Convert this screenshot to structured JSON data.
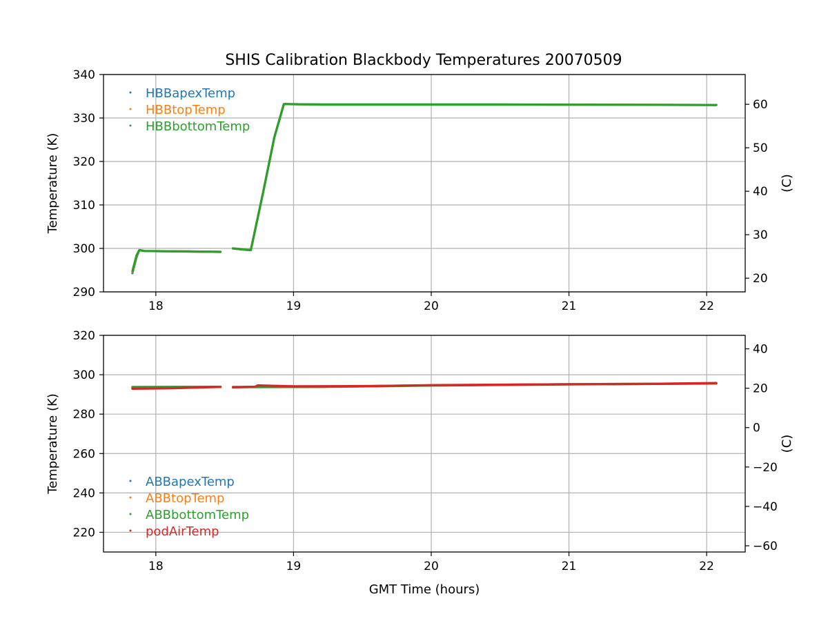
{
  "title": "SHIS Calibration Blackbody Temperatures 20070509",
  "colors": {
    "blue": "#1f77b4",
    "orange": "#ff7f0e",
    "green": "#2ca02c",
    "red": "#d62728"
  },
  "chart_data": [
    {
      "type": "scatter",
      "title": "SHIS Calibration Blackbody Temperatures 20070509",
      "ylabel": "Temperature (K)",
      "y2label": "(C)",
      "xlabel": "",
      "xlim": [
        17.62,
        22.28
      ],
      "ylim": [
        290,
        340
      ],
      "y2lim": [
        16.85,
        66.85
      ],
      "xticks": [
        18,
        19,
        20,
        21,
        22
      ],
      "yticks": [
        290,
        300,
        310,
        320,
        330,
        340
      ],
      "y2ticks": [
        20,
        30,
        40,
        50,
        60
      ],
      "grid": true,
      "legend": "upper-left",
      "series": [
        {
          "name": "HBBapexTemp",
          "color": "#1f77b4",
          "segments": [
            [
              [
                17.83,
                294.3
              ],
              [
                17.86,
                298.0
              ],
              [
                17.88,
                299.6
              ],
              [
                17.92,
                299.4
              ],
              [
                18.2,
                299.3
              ],
              [
                18.47,
                299.2
              ]
            ],
            [
              [
                18.56,
                300.0
              ],
              [
                18.65,
                299.7
              ],
              [
                18.69,
                299.6
              ],
              [
                18.78,
                313.0
              ],
              [
                18.86,
                325.5
              ],
              [
                18.93,
                333.2
              ],
              [
                19.2,
                333.1
              ],
              [
                20.5,
                333.1
              ],
              [
                22.07,
                333.0
              ]
            ]
          ]
        },
        {
          "name": "HBBtopTemp",
          "color": "#ff7f0e",
          "segments": [
            [
              [
                17.83,
                294.6
              ],
              [
                17.86,
                298.2
              ],
              [
                17.88,
                299.6
              ],
              [
                17.92,
                299.4
              ],
              [
                18.2,
                299.3
              ],
              [
                18.47,
                299.2
              ]
            ],
            [
              [
                18.56,
                300.0
              ],
              [
                18.65,
                299.7
              ],
              [
                18.69,
                299.6
              ],
              [
                18.78,
                313.0
              ],
              [
                18.86,
                325.5
              ],
              [
                18.93,
                333.2
              ],
              [
                19.2,
                333.1
              ],
              [
                20.5,
                333.1
              ],
              [
                22.07,
                333.0
              ]
            ]
          ]
        },
        {
          "name": "HBBbottomTemp",
          "color": "#2ca02c",
          "segments": [
            [
              [
                17.83,
                294.8
              ],
              [
                17.86,
                298.4
              ],
              [
                17.88,
                299.6
              ],
              [
                17.92,
                299.4
              ],
              [
                18.2,
                299.3
              ],
              [
                18.47,
                299.2
              ]
            ],
            [
              [
                18.56,
                300.0
              ],
              [
                18.65,
                299.7
              ],
              [
                18.69,
                299.6
              ],
              [
                18.78,
                313.0
              ],
              [
                18.86,
                325.5
              ],
              [
                18.93,
                333.2
              ],
              [
                19.2,
                333.1
              ],
              [
                20.5,
                333.1
              ],
              [
                22.07,
                333.0
              ]
            ]
          ]
        }
      ]
    },
    {
      "type": "scatter",
      "title": "",
      "ylabel": "Temperature (K)",
      "y2label": "(C)",
      "xlabel": "GMT Time (hours)",
      "xlim": [
        17.62,
        22.28
      ],
      "ylim": [
        210,
        320
      ],
      "y2lim": [
        -63.15,
        46.85
      ],
      "xticks": [
        18,
        19,
        20,
        21,
        22
      ],
      "yticks": [
        220,
        240,
        260,
        280,
        300,
        320
      ],
      "y2ticks": [
        -60,
        -40,
        -20,
        0,
        20,
        40
      ],
      "grid": true,
      "legend": "lower-left",
      "series": [
        {
          "name": "ABBapexTemp",
          "color": "#1f77b4",
          "segments": [
            [
              [
                17.83,
                293.4
              ],
              [
                18.47,
                293.8
              ]
            ],
            [
              [
                18.56,
                293.8
              ],
              [
                19.2,
                293.9
              ],
              [
                20.0,
                294.6
              ],
              [
                21.0,
                295.2
              ],
              [
                22.07,
                295.6
              ]
            ]
          ]
        },
        {
          "name": "ABBtopTemp",
          "color": "#ff7f0e",
          "segments": [
            [
              [
                17.83,
                293.4
              ],
              [
                18.47,
                293.8
              ]
            ],
            [
              [
                18.56,
                293.8
              ],
              [
                19.2,
                293.9
              ],
              [
                20.0,
                294.6
              ],
              [
                21.0,
                295.2
              ],
              [
                22.07,
                295.6
              ]
            ]
          ]
        },
        {
          "name": "ABBbottomTemp",
          "color": "#2ca02c",
          "segments": [
            [
              [
                17.83,
                293.8
              ],
              [
                18.47,
                293.9
              ]
            ],
            [
              [
                18.56,
                293.7
              ],
              [
                19.2,
                293.8
              ],
              [
                20.0,
                294.5
              ],
              [
                21.0,
                295.1
              ],
              [
                22.07,
                295.5
              ]
            ]
          ]
        },
        {
          "name": "podAirTemp",
          "color": "#d62728",
          "segments": [
            [
              [
                17.83,
                292.9
              ],
              [
                18.1,
                293.1
              ],
              [
                18.47,
                293.8
              ]
            ],
            [
              [
                18.56,
                293.6
              ],
              [
                18.72,
                293.9
              ],
              [
                18.74,
                294.6
              ],
              [
                19.0,
                294.1
              ],
              [
                19.6,
                294.3
              ],
              [
                20.0,
                294.7
              ],
              [
                20.8,
                295.1
              ],
              [
                21.5,
                295.3
              ],
              [
                22.07,
                295.8
              ]
            ]
          ]
        }
      ]
    }
  ]
}
